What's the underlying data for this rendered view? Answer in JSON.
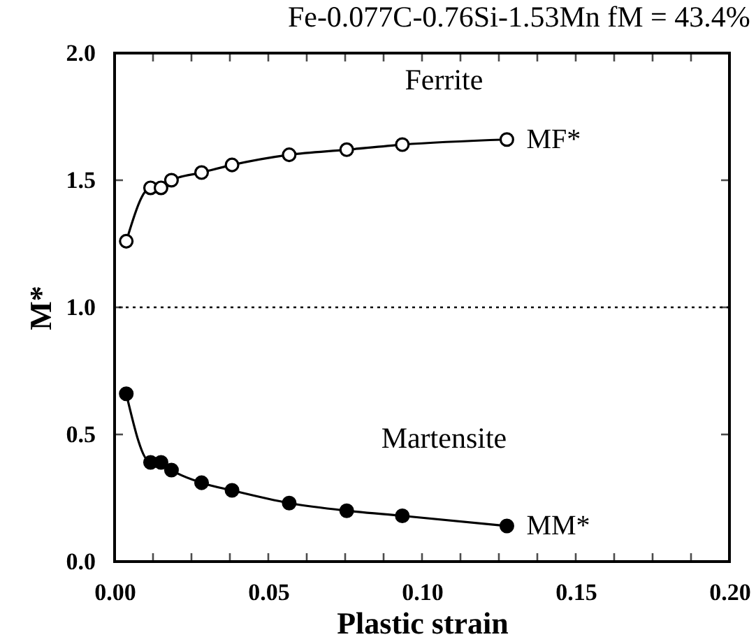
{
  "chart_data": {
    "type": "line",
    "title": "Fe-0.077C-0.76Si-1.53Mn    fM = 43.4%",
    "xlabel": "Plastic strain",
    "ylabel": "M*",
    "x": [
      0.0038,
      0.0117,
      0.0151,
      0.0185,
      0.0283,
      0.0382,
      0.0568,
      0.0755,
      0.0936,
      0.1276
    ],
    "series": [
      {
        "name": "MF*",
        "color": "#000000",
        "values": [
          1.26,
          1.47,
          1.47,
          1.5,
          1.53,
          1.56,
          1.6,
          1.62,
          1.64,
          1.66
        ]
      },
      {
        "name": "MM*",
        "color": "#000000",
        "values": [
          0.66,
          0.39,
          0.39,
          0.36,
          0.31,
          0.28,
          0.23,
          0.2,
          0.18,
          0.14
        ]
      }
    ],
    "xlim": [
      0,
      0.2
    ],
    "ylim": [
      0,
      2
    ],
    "xticks": [
      {
        "value": 0,
        "label": "0.00"
      },
      {
        "value": 0.0125,
        "label": null
      },
      {
        "value": 0.025,
        "label": null
      },
      {
        "value": 0.0375,
        "label": null
      },
      {
        "value": 0.05,
        "label": "0.05"
      },
      {
        "value": 0.0625,
        "label": null
      },
      {
        "value": 0.075,
        "label": null
      },
      {
        "value": 0.0875,
        "label": null
      },
      {
        "value": 0.1,
        "label": "0.10"
      },
      {
        "value": 0.1125,
        "label": null
      },
      {
        "value": 0.125,
        "label": null
      },
      {
        "value": 0.1375,
        "label": null
      },
      {
        "value": 0.15,
        "label": "0.15"
      },
      {
        "value": 0.1625,
        "label": null
      },
      {
        "value": 0.175,
        "label": null
      },
      {
        "value": 0.1875,
        "label": null
      },
      {
        "value": 0.2,
        "label": "0.20"
      }
    ],
    "yticks": [
      {
        "value": 0,
        "label": "0.0"
      },
      {
        "value": 0.5,
        "label": "0.5"
      },
      {
        "value": 1,
        "label": "1.0"
      },
      {
        "value": 1.5,
        "label": "1.5"
      },
      {
        "value": 2,
        "label": "2.0"
      }
    ],
    "ref_lines": [
      {
        "axis": "y",
        "value": 1,
        "line_style": "dotted"
      }
    ],
    "annotations": [
      "Ferrite",
      "Martensite"
    ],
    "marker": "circle"
  }
}
